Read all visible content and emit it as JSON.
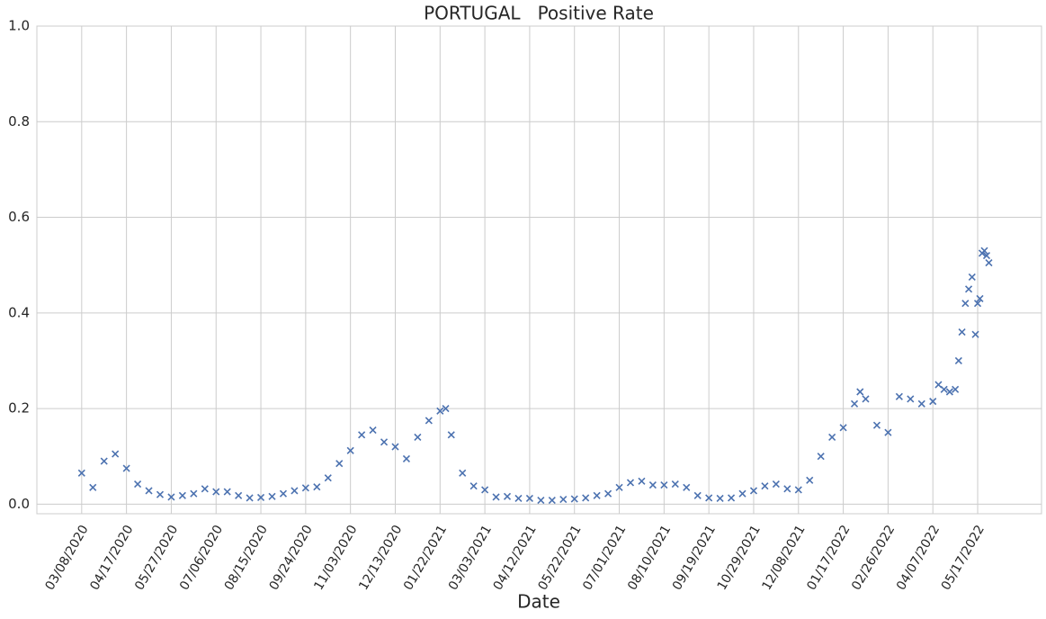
{
  "chart_data": {
    "type": "scatter",
    "title": "PORTUGAL   Positive Rate",
    "xlabel": "Date",
    "marker": "x",
    "color": "#4c72b0",
    "grid": true,
    "xlim": [
      "01/28/2020",
      "07/13/2022"
    ],
    "xticks": [
      "03/08/2020",
      "04/17/2020",
      "05/27/2020",
      "07/06/2020",
      "08/15/2020",
      "09/24/2020",
      "11/03/2020",
      "12/13/2020",
      "01/22/2021",
      "03/03/2021",
      "04/12/2021",
      "05/22/2021",
      "07/01/2021",
      "08/10/2021",
      "09/19/2021",
      "10/29/2021",
      "12/08/2021",
      "01/17/2022",
      "02/26/2022",
      "04/07/2022",
      "05/17/2022"
    ],
    "ylim": [
      -0.02,
      1.0
    ],
    "yticks": [
      {
        "value": 0,
        "label": "0.0"
      },
      0.2,
      0.4,
      0.6,
      0.8,
      {
        "value": 1,
        "label": "1.0"
      }
    ],
    "x": [
      "03/08/2020",
      "03/18/2020",
      "03/28/2020",
      "04/07/2020",
      "04/17/2020",
      "04/27/2020",
      "05/07/2020",
      "05/17/2020",
      "05/27/2020",
      "06/06/2020",
      "06/16/2020",
      "06/26/2020",
      "07/06/2020",
      "07/16/2020",
      "07/26/2020",
      "08/05/2020",
      "08/15/2020",
      "08/25/2020",
      "09/04/2020",
      "09/14/2020",
      "09/24/2020",
      "10/04/2020",
      "10/14/2020",
      "10/24/2020",
      "11/03/2020",
      "11/13/2020",
      "11/23/2020",
      "12/03/2020",
      "12/13/2020",
      "12/23/2020",
      "01/02/2021",
      "01/12/2021",
      "01/22/2021",
      "01/27/2021",
      "02/01/2021",
      "02/11/2021",
      "02/21/2021",
      "03/03/2021",
      "03/13/2021",
      "03/23/2021",
      "04/02/2021",
      "04/12/2021",
      "04/22/2021",
      "05/02/2021",
      "05/12/2021",
      "05/22/2021",
      "06/01/2021",
      "06/11/2021",
      "06/21/2021",
      "07/01/2021",
      "07/11/2021",
      "07/21/2021",
      "07/31/2021",
      "08/10/2021",
      "08/20/2021",
      "08/30/2021",
      "09/09/2021",
      "09/19/2021",
      "09/29/2021",
      "10/09/2021",
      "10/19/2021",
      "10/29/2021",
      "11/08/2021",
      "11/18/2021",
      "11/28/2021",
      "12/08/2021",
      "12/18/2021",
      "12/28/2021",
      "01/07/2022",
      "01/17/2022",
      "01/27/2022",
      "02/01/2022",
      "02/06/2022",
      "02/16/2022",
      "02/26/2022",
      "03/08/2022",
      "03/18/2022",
      "03/28/2022",
      "04/07/2022",
      "04/12/2022",
      "04/17/2022",
      "04/22/2022",
      "04/27/2022",
      "04/30/2022",
      "05/03/2022",
      "05/06/2022",
      "05/09/2022",
      "05/12/2022",
      "05/15/2022",
      "05/17/2022",
      "05/19/2022",
      "05/21/2022",
      "05/23/2022",
      "05/25/2022",
      "05/27/2022"
    ],
    "values": [
      0.065,
      0.035,
      0.09,
      0.105,
      0.075,
      0.042,
      0.028,
      0.02,
      0.015,
      0.018,
      0.022,
      0.032,
      0.026,
      0.026,
      0.018,
      0.013,
      0.014,
      0.016,
      0.022,
      0.028,
      0.034,
      0.036,
      0.055,
      0.085,
      0.112,
      0.145,
      0.155,
      0.13,
      0.12,
      0.095,
      0.14,
      0.175,
      0.195,
      0.2,
      0.145,
      0.065,
      0.038,
      0.03,
      0.015,
      0.016,
      0.012,
      0.012,
      0.008,
      0.008,
      0.01,
      0.011,
      0.013,
      0.018,
      0.022,
      0.035,
      0.045,
      0.048,
      0.04,
      0.04,
      0.042,
      0.035,
      0.018,
      0.013,
      0.012,
      0.013,
      0.022,
      0.028,
      0.038,
      0.042,
      0.032,
      0.03,
      0.05,
      0.1,
      0.14,
      0.16,
      0.21,
      0.235,
      0.22,
      0.165,
      0.15,
      0.225,
      0.22,
      0.21,
      0.215,
      0.25,
      0.24,
      0.235,
      0.24,
      0.3,
      0.36,
      0.42,
      0.45,
      0.475,
      0.355,
      0.42,
      0.43,
      0.525,
      0.53,
      0.52,
      0.505
    ]
  }
}
